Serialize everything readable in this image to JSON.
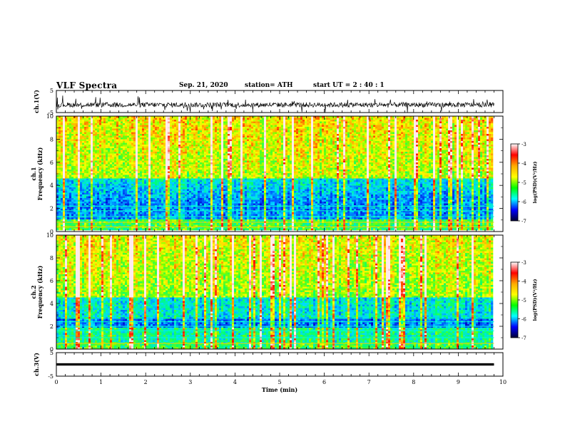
{
  "header": {
    "title": "VLF Spectra",
    "date": "Sep. 21, 2020",
    "station": "station= ATH",
    "start_ut": "start  UT =   2 : 40 : 1"
  },
  "colorbar": {
    "label": "log(PSD)(V²/Hz)",
    "ticks": [
      "-3",
      "-4",
      "-5",
      "-6",
      "-7"
    ],
    "colors": [
      "#ffffff",
      "#ff0000",
      "#ffaa00",
      "#ffff00",
      "#00ff00",
      "#00ffff",
      "#0000ff",
      "#000033"
    ]
  },
  "chart_data": [
    {
      "type": "line",
      "name": "ch1-waveform",
      "ylabel": "ch.1(V)",
      "ylim": [
        -5,
        5
      ],
      "yticks": [
        "5",
        "-5"
      ],
      "description_values": {
        "baseline": -1.5,
        "range": [
          -3.5,
          0.5
        ]
      }
    },
    {
      "type": "heatmap",
      "name": "ch1-spectrogram",
      "ylabel": "ch.1\nFrequency  (kHz)",
      "ylim": [
        0,
        10
      ],
      "yticks": [
        "0",
        "2",
        "4",
        "6",
        "8",
        "10"
      ],
      "zlim": [
        -7,
        -3
      ]
    },
    {
      "type": "heatmap",
      "name": "ch2-spectrogram",
      "ylabel": "ch.2\nFrequency  (kHz)",
      "ylim": [
        0,
        10
      ],
      "yticks": [
        "0",
        "2",
        "4",
        "6",
        "8",
        "10"
      ],
      "zlim": [
        -7,
        -3
      ]
    },
    {
      "type": "line",
      "name": "ch3-waveform",
      "ylabel": "ch.3(V)",
      "ylim": [
        -5,
        5
      ],
      "yticks": [
        "5",
        "-5"
      ],
      "description_values": {
        "baseline": 0,
        "range": [
          -0.5,
          0.5
        ]
      }
    }
  ],
  "xaxis": {
    "label": "Time  (min)",
    "xlim": [
      0,
      10
    ],
    "ticks": [
      "0",
      "1",
      "2",
      "3",
      "4",
      "5",
      "6",
      "7",
      "8",
      "9",
      "10"
    ],
    "data_end": 9.8
  }
}
